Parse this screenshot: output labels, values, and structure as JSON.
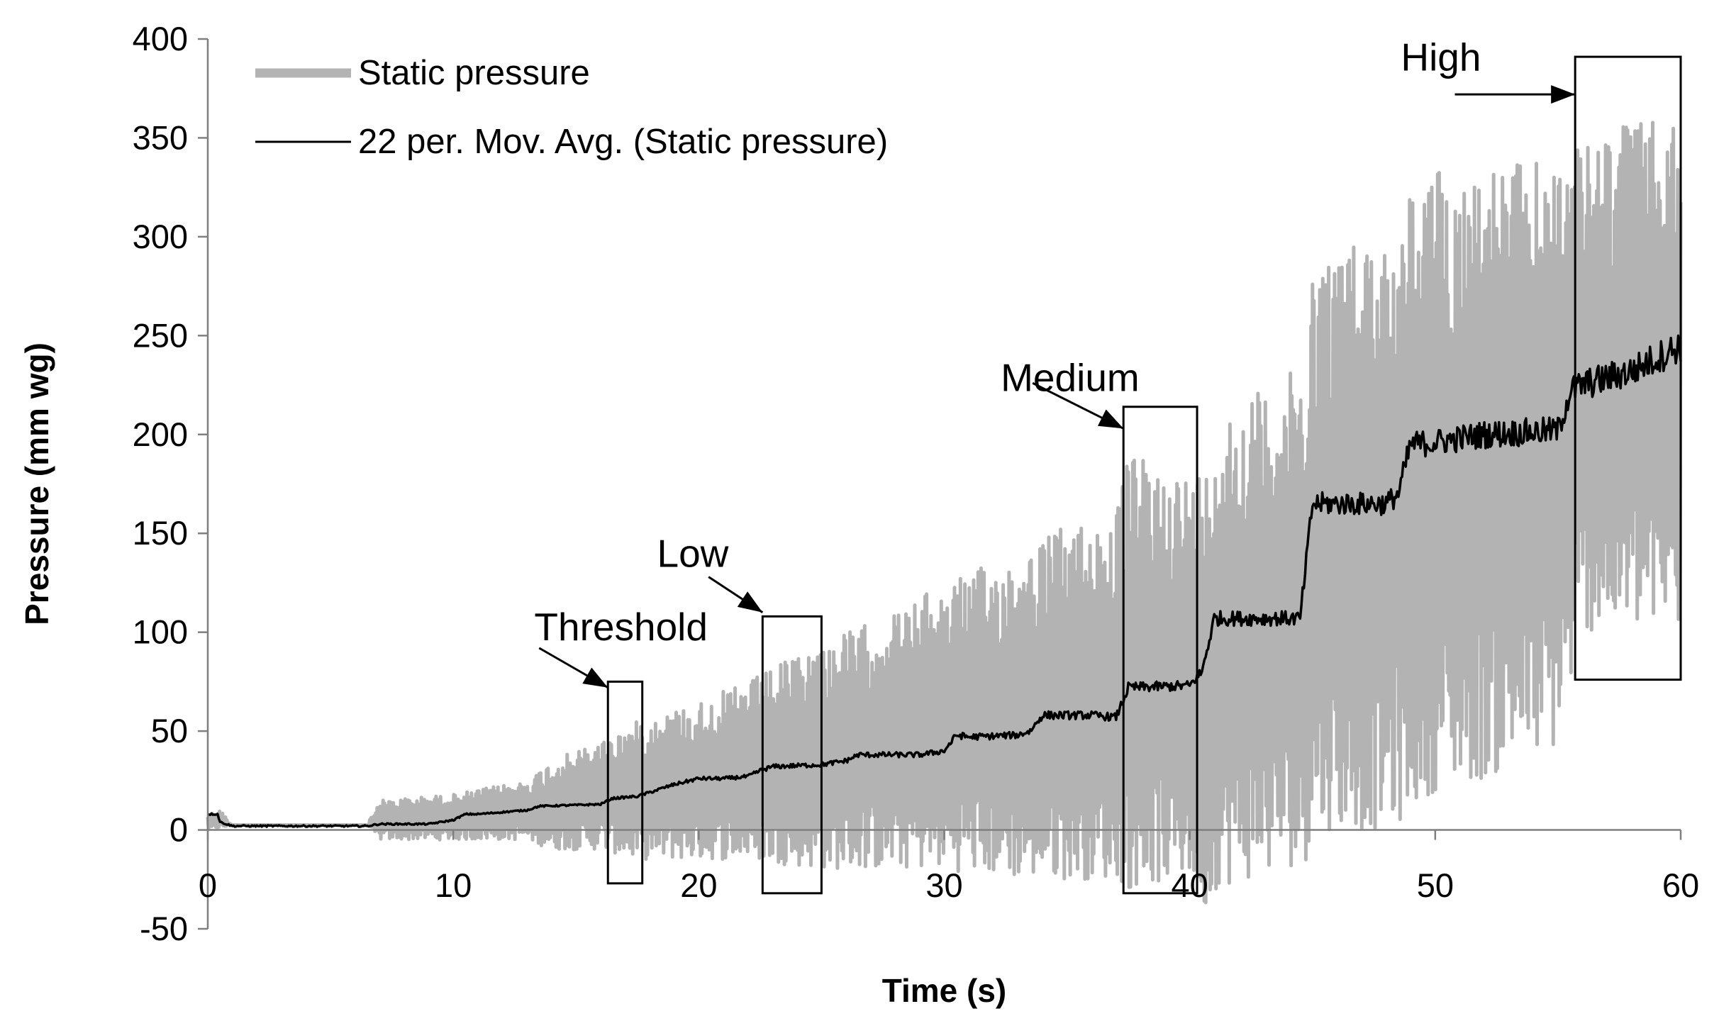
{
  "chart_data": {
    "type": "line",
    "title": "",
    "xlabel": "Time (s)",
    "ylabel": "Pressure (mm wg)",
    "xlim": [
      0,
      60
    ],
    "ylim": [
      -50,
      400
    ],
    "xticks": [
      0,
      10,
      20,
      30,
      40,
      50,
      60
    ],
    "yticks": [
      -50,
      0,
      50,
      100,
      150,
      200,
      250,
      300,
      350,
      400
    ],
    "grid": false,
    "legend_position": "top-left",
    "series": [
      {
        "name": "Static pressure",
        "color": "#b3b3b3",
        "style": "band",
        "t": [
          0,
          0.5,
          1,
          6.5,
          7,
          10,
          13,
          14,
          16,
          17.5,
          20,
          22,
          25,
          28,
          30,
          33,
          35,
          37,
          37.5,
          40,
          40.8,
          41,
          44,
          44.8,
          45,
          48,
          48.8,
          49,
          50,
          52,
          55,
          55.5,
          56,
          58,
          60
        ],
        "upper": [
          8,
          10,
          3,
          3,
          15,
          18,
          25,
          35,
          45,
          55,
          65,
          75,
          95,
          110,
          125,
          140,
          155,
          160,
          190,
          180,
          185,
          210,
          230,
          240,
          290,
          305,
          300,
          330,
          335,
          335,
          340,
          345,
          345,
          360,
          355
        ],
        "lower": [
          0,
          1,
          2,
          2,
          -5,
          -5,
          -5,
          -10,
          -10,
          -15,
          -15,
          -15,
          -20,
          -20,
          -20,
          -25,
          -25,
          -25,
          -30,
          -25,
          -45,
          -30,
          -20,
          -15,
          0,
          0,
          5,
          10,
          20,
          25,
          40,
          70,
          100,
          100,
          100
        ]
      },
      {
        "name": "22 per. Mov. Avg. (Static pressure)",
        "color": "#000000",
        "style": "line",
        "t": [
          0,
          0.4,
          0.5,
          1,
          6.5,
          7,
          9,
          10,
          10.5,
          11,
          13,
          13.5,
          16,
          16.5,
          17.5,
          18,
          19,
          20,
          21,
          22,
          22.5,
          23,
          25,
          26,
          26.5,
          27,
          29,
          30,
          30.5,
          31,
          33,
          33.5,
          34,
          36,
          37,
          37.5,
          40,
          40.5,
          41,
          44,
          44.5,
          45,
          48,
          48.5,
          49,
          50,
          52,
          55,
          55.5,
          56,
          58,
          60
        ],
        "values": [
          8,
          8,
          4,
          2,
          2,
          3,
          3,
          5,
          8,
          8,
          10,
          12,
          13,
          16,
          17,
          19,
          23,
          26,
          26,
          27,
          30,
          32,
          33,
          35,
          38,
          38,
          38,
          40,
          48,
          47,
          48,
          50,
          58,
          58,
          57,
          72,
          73,
          80,
          107,
          107,
          107,
          165,
          165,
          170,
          195,
          196,
          200,
          202,
          222,
          225,
          232,
          245
        ]
      }
    ],
    "annotations": [
      {
        "label": "Threshold",
        "box_x": [
          16.3,
          17.7
        ],
        "box_y": [
          -27,
          75
        ],
        "label_at": [
          13.3,
          96
        ],
        "arrow_from": [
          13.5,
          92
        ],
        "arrow_to": [
          16.3,
          72
        ]
      },
      {
        "label": "Low",
        "box_x": [
          22.6,
          25
        ],
        "box_y": [
          -32,
          108
        ],
        "label_at": [
          18.3,
          133
        ],
        "arrow_from": [
          20.4,
          128
        ],
        "arrow_to": [
          22.6,
          110
        ]
      },
      {
        "label": "Medium",
        "box_x": [
          37.3,
          40.3
        ],
        "box_y": [
          -32,
          214
        ],
        "label_at": [
          32.3,
          222
        ],
        "arrow_from": [
          33.6,
          226
        ],
        "arrow_to": [
          37.3,
          203
        ]
      },
      {
        "label": "High",
        "box_x": [
          55.7,
          60
        ],
        "box_y": [
          76,
          391
        ],
        "label_at": [
          48.6,
          384
        ],
        "arrow_from": [
          50.8,
          372
        ],
        "arrow_to": [
          55.7,
          372
        ]
      }
    ]
  }
}
